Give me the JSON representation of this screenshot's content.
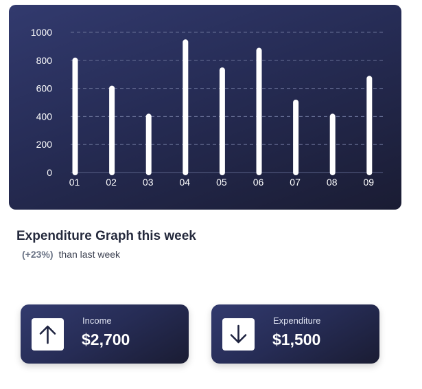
{
  "chart_data": {
    "type": "bar",
    "categories": [
      "01",
      "02",
      "03",
      "04",
      "05",
      "06",
      "07",
      "08",
      "09"
    ],
    "values": [
      800,
      600,
      400,
      930,
      730,
      870,
      500,
      400,
      670
    ],
    "ylim": [
      0,
      1000
    ],
    "yticks": [
      0,
      200,
      400,
      600,
      800,
      1000
    ],
    "grid": true,
    "colors": {
      "bar": "#ffffff",
      "grid": "#6a7298",
      "tick_label": "#ffffff",
      "baseline": "#5a6288"
    }
  },
  "summary": {
    "title": "Expenditure Graph this week",
    "change": "(+23%)",
    "change_text": "than last week"
  },
  "cards": {
    "income": {
      "label": "Income",
      "value": "$2,700",
      "icon": "arrow-up-icon"
    },
    "expenditure": {
      "label": "Expenditure",
      "value": "$1,500",
      "icon": "arrow-down-icon"
    }
  }
}
